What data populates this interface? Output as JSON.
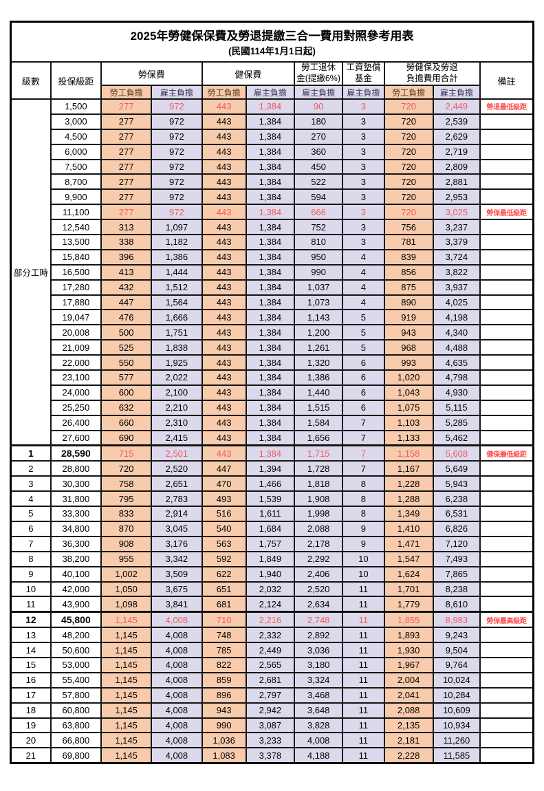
{
  "title": "2025年勞健保保費及勞退提繳三合一費用對照參考用表",
  "subtitle": "(民國114年1月1日起)",
  "header": {
    "level": "級數",
    "bracket": "投保級距",
    "labor_ins": "勞保費",
    "health_ins": "健保費",
    "pension_line1": "勞工退休",
    "pension_line2": "金(提繳6%)",
    "wage_fund_line1": "工資墊償",
    "wage_fund_line2": "基金",
    "total_line1": "勞健保及勞退",
    "total_line2": "負擔費用合計",
    "note": "備註",
    "employee": "勞工負擔",
    "employer": "雇主負擔"
  },
  "part_time_label": "部分工時",
  "part_time_rowspan": 23,
  "colors": {
    "employee_bg": "#F8CBAD",
    "employer_bg": "#DCD9EC",
    "highlight_red": "#f25a5a",
    "note_red": "#ff4f4f",
    "grid": "#141414"
  },
  "rows": [
    {
      "lv": "",
      "br": "1,500",
      "v": [
        "277",
        "972",
        "443",
        "1,384",
        "90",
        "3",
        "720",
        "2,449"
      ],
      "note": "勞退最低級距",
      "red": true
    },
    {
      "lv": "",
      "br": "3,000",
      "v": [
        "277",
        "972",
        "443",
        "1,384",
        "180",
        "3",
        "720",
        "2,539"
      ],
      "note": ""
    },
    {
      "lv": "",
      "br": "4,500",
      "v": [
        "277",
        "972",
        "443",
        "1,384",
        "270",
        "3",
        "720",
        "2,629"
      ],
      "note": ""
    },
    {
      "lv": "",
      "br": "6,000",
      "v": [
        "277",
        "972",
        "443",
        "1,384",
        "360",
        "3",
        "720",
        "2,719"
      ],
      "note": ""
    },
    {
      "lv": "",
      "br": "7,500",
      "v": [
        "277",
        "972",
        "443",
        "1,384",
        "450",
        "3",
        "720",
        "2,809"
      ],
      "note": ""
    },
    {
      "lv": "",
      "br": "8,700",
      "v": [
        "277",
        "972",
        "443",
        "1,384",
        "522",
        "3",
        "720",
        "2,881"
      ],
      "note": ""
    },
    {
      "lv": "",
      "br": "9,900",
      "v": [
        "277",
        "972",
        "443",
        "1,384",
        "594",
        "3",
        "720",
        "2,953"
      ],
      "note": ""
    },
    {
      "lv": "",
      "br": "11,100",
      "v": [
        "277",
        "972",
        "443",
        "1,384",
        "666",
        "3",
        "720",
        "3,025"
      ],
      "note": "勞保最低級距",
      "red": true
    },
    {
      "lv": "",
      "br": "12,540",
      "v": [
        "313",
        "1,097",
        "443",
        "1,384",
        "752",
        "3",
        "756",
        "3,237"
      ],
      "note": ""
    },
    {
      "lv": "",
      "br": "13,500",
      "v": [
        "338",
        "1,182",
        "443",
        "1,384",
        "810",
        "3",
        "781",
        "3,379"
      ],
      "note": ""
    },
    {
      "lv": "",
      "br": "15,840",
      "v": [
        "396",
        "1,386",
        "443",
        "1,384",
        "950",
        "4",
        "839",
        "3,724"
      ],
      "note": ""
    },
    {
      "lv": "",
      "br": "16,500",
      "v": [
        "413",
        "1,444",
        "443",
        "1,384",
        "990",
        "4",
        "856",
        "3,822"
      ],
      "note": ""
    },
    {
      "lv": "",
      "br": "17,280",
      "v": [
        "432",
        "1,512",
        "443",
        "1,384",
        "1,037",
        "4",
        "875",
        "3,937"
      ],
      "note": ""
    },
    {
      "lv": "",
      "br": "17,880",
      "v": [
        "447",
        "1,564",
        "443",
        "1,384",
        "1,073",
        "4",
        "890",
        "4,025"
      ],
      "note": ""
    },
    {
      "lv": "",
      "br": "19,047",
      "v": [
        "476",
        "1,666",
        "443",
        "1,384",
        "1,143",
        "5",
        "919",
        "4,198"
      ],
      "note": ""
    },
    {
      "lv": "",
      "br": "20,008",
      "v": [
        "500",
        "1,751",
        "443",
        "1,384",
        "1,200",
        "5",
        "943",
        "4,340"
      ],
      "note": ""
    },
    {
      "lv": "",
      "br": "21,009",
      "v": [
        "525",
        "1,838",
        "443",
        "1,384",
        "1,261",
        "5",
        "968",
        "4,488"
      ],
      "note": ""
    },
    {
      "lv": "",
      "br": "22,000",
      "v": [
        "550",
        "1,925",
        "443",
        "1,384",
        "1,320",
        "6",
        "993",
        "4,635"
      ],
      "note": ""
    },
    {
      "lv": "",
      "br": "23,100",
      "v": [
        "577",
        "2,022",
        "443",
        "1,384",
        "1,386",
        "6",
        "1,020",
        "4,798"
      ],
      "note": ""
    },
    {
      "lv": "",
      "br": "24,000",
      "v": [
        "600",
        "2,100",
        "443",
        "1,384",
        "1,440",
        "6",
        "1,043",
        "4,930"
      ],
      "note": ""
    },
    {
      "lv": "",
      "br": "25,250",
      "v": [
        "632",
        "2,210",
        "443",
        "1,384",
        "1,515",
        "6",
        "1,075",
        "5,115"
      ],
      "note": ""
    },
    {
      "lv": "",
      "br": "26,400",
      "v": [
        "660",
        "2,310",
        "443",
        "1,384",
        "1,584",
        "7",
        "1,103",
        "5,285"
      ],
      "note": ""
    },
    {
      "lv": "",
      "br": "27,600",
      "v": [
        "690",
        "2,415",
        "443",
        "1,384",
        "1,656",
        "7",
        "1,133",
        "5,462"
      ],
      "note": ""
    },
    {
      "lv": "1",
      "br": "28,590",
      "v": [
        "715",
        "2,501",
        "443",
        "1,384",
        "1,715",
        "7",
        "1,158",
        "5,608"
      ],
      "note": "健保最低級距",
      "red": true,
      "emph": true,
      "thick": true
    },
    {
      "lv": "2",
      "br": "28,800",
      "v": [
        "720",
        "2,520",
        "447",
        "1,394",
        "1,728",
        "7",
        "1,167",
        "5,649"
      ],
      "note": ""
    },
    {
      "lv": "3",
      "br": "30,300",
      "v": [
        "758",
        "2,651",
        "470",
        "1,466",
        "1,818",
        "8",
        "1,228",
        "5,943"
      ],
      "note": ""
    },
    {
      "lv": "4",
      "br": "31,800",
      "v": [
        "795",
        "2,783",
        "493",
        "1,539",
        "1,908",
        "8",
        "1,288",
        "6,238"
      ],
      "note": ""
    },
    {
      "lv": "5",
      "br": "33,300",
      "v": [
        "833",
        "2,914",
        "516",
        "1,611",
        "1,998",
        "8",
        "1,349",
        "6,531"
      ],
      "note": ""
    },
    {
      "lv": "6",
      "br": "34,800",
      "v": [
        "870",
        "3,045",
        "540",
        "1,684",
        "2,088",
        "9",
        "1,410",
        "6,826"
      ],
      "note": ""
    },
    {
      "lv": "7",
      "br": "36,300",
      "v": [
        "908",
        "3,176",
        "563",
        "1,757",
        "2,178",
        "9",
        "1,471",
        "7,120"
      ],
      "note": ""
    },
    {
      "lv": "8",
      "br": "38,200",
      "v": [
        "955",
        "3,342",
        "592",
        "1,849",
        "2,292",
        "10",
        "1,547",
        "7,493"
      ],
      "note": ""
    },
    {
      "lv": "9",
      "br": "40,100",
      "v": [
        "1,002",
        "3,509",
        "622",
        "1,940",
        "2,406",
        "10",
        "1,624",
        "7,865"
      ],
      "note": ""
    },
    {
      "lv": "10",
      "br": "42,000",
      "v": [
        "1,050",
        "3,675",
        "651",
        "2,032",
        "2,520",
        "11",
        "1,701",
        "8,238"
      ],
      "note": ""
    },
    {
      "lv": "11",
      "br": "43,900",
      "v": [
        "1,098",
        "3,841",
        "681",
        "2,124",
        "2,634",
        "11",
        "1,779",
        "8,610"
      ],
      "note": ""
    },
    {
      "lv": "12",
      "br": "45,800",
      "v": [
        "1,145",
        "4,008",
        "710",
        "2,216",
        "2,748",
        "11",
        "1,855",
        "8,983"
      ],
      "note": "勞保最高級距",
      "red": true,
      "emph": true,
      "thick": true
    },
    {
      "lv": "13",
      "br": "48,200",
      "v": [
        "1,145",
        "4,008",
        "748",
        "2,332",
        "2,892",
        "11",
        "1,893",
        "9,243"
      ],
      "note": ""
    },
    {
      "lv": "14",
      "br": "50,600",
      "v": [
        "1,145",
        "4,008",
        "785",
        "2,449",
        "3,036",
        "11",
        "1,930",
        "9,504"
      ],
      "note": ""
    },
    {
      "lv": "15",
      "br": "53,000",
      "v": [
        "1,145",
        "4,008",
        "822",
        "2,565",
        "3,180",
        "11",
        "1,967",
        "9,764"
      ],
      "note": ""
    },
    {
      "lv": "16",
      "br": "55,400",
      "v": [
        "1,145",
        "4,008",
        "859",
        "2,681",
        "3,324",
        "11",
        "2,004",
        "10,024"
      ],
      "note": ""
    },
    {
      "lv": "17",
      "br": "57,800",
      "v": [
        "1,145",
        "4,008",
        "896",
        "2,797",
        "3,468",
        "11",
        "2,041",
        "10,284"
      ],
      "note": ""
    },
    {
      "lv": "18",
      "br": "60,800",
      "v": [
        "1,145",
        "4,008",
        "943",
        "2,942",
        "3,648",
        "11",
        "2,088",
        "10,609"
      ],
      "note": ""
    },
    {
      "lv": "19",
      "br": "63,800",
      "v": [
        "1,145",
        "4,008",
        "990",
        "3,087",
        "3,828",
        "11",
        "2,135",
        "10,934"
      ],
      "note": ""
    },
    {
      "lv": "20",
      "br": "66,800",
      "v": [
        "1,145",
        "4,008",
        "1,036",
        "3,233",
        "4,008",
        "11",
        "2,181",
        "11,260"
      ],
      "note": ""
    },
    {
      "lv": "21",
      "br": "69,800",
      "v": [
        "1,145",
        "4,008",
        "1,083",
        "3,378",
        "4,188",
        "11",
        "2,228",
        "11,585"
      ],
      "note": ""
    }
  ],
  "value_cell_names": [
    "cell-labor-employee",
    "cell-labor-employer",
    "cell-health-employee",
    "cell-health-employer",
    "cell-pension-employer",
    "cell-wage-fund-employer",
    "cell-total-employee",
    "cell-total-employer"
  ],
  "value_cell_classes": [
    "c-emp",
    "c-er",
    "c-emp",
    "c-er",
    "c-er",
    "c-er",
    "c-emp",
    "c-er"
  ]
}
